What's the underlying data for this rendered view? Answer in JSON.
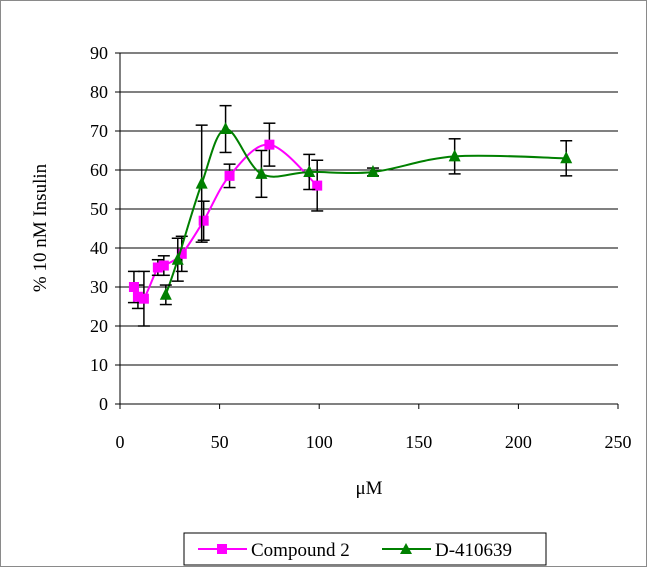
{
  "chart_data": {
    "type": "line",
    "title": "",
    "xlabel": "μM",
    "ylabel": "% 10 nM Insulin",
    "xlim": [
      0,
      250
    ],
    "ylim": [
      0,
      90
    ],
    "x_ticks": [
      0,
      50,
      100,
      150,
      200,
      250
    ],
    "y_ticks": [
      0,
      10,
      20,
      30,
      40,
      50,
      60,
      70,
      80,
      90
    ],
    "grid": "horizontal",
    "legend_position": "bottom",
    "series": [
      {
        "name": "Compound 2",
        "color": "#ff00ff",
        "marker": "square",
        "x": [
          7,
          9,
          12,
          19,
          22,
          31,
          42,
          55,
          75,
          99
        ],
        "y": [
          30,
          27.5,
          27,
          35,
          35.5,
          38.5,
          47,
          58.5,
          66.5,
          56
        ],
        "err": [
          4,
          3,
          7,
          2,
          2.5,
          4.5,
          5,
          3,
          5.5,
          6.5
        ]
      },
      {
        "name": "D-410639",
        "color": "#008000",
        "marker": "triangle",
        "x": [
          23,
          29,
          41,
          53,
          71,
          95,
          127,
          168,
          224
        ],
        "y": [
          28,
          37,
          56.5,
          70.5,
          59,
          59.5,
          59.5,
          63.5,
          63
        ],
        "err": [
          2.5,
          5.5,
          15,
          6,
          6,
          4.5,
          1,
          4.5,
          4.5
        ]
      }
    ]
  }
}
